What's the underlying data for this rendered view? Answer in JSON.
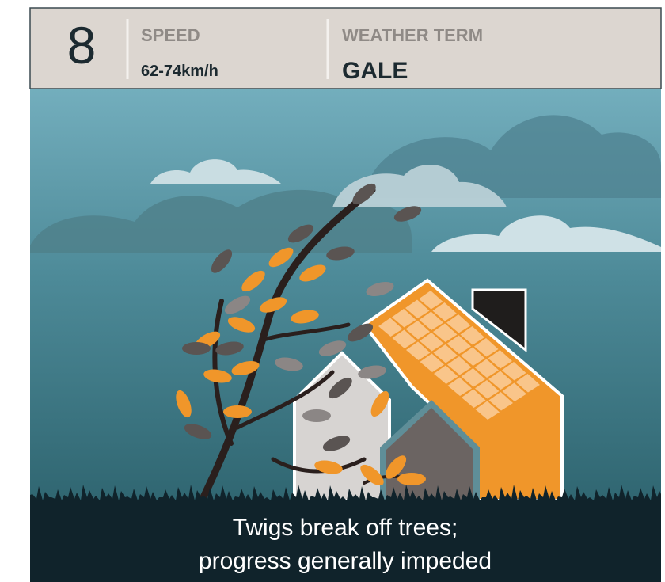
{
  "beaufort_number": "8",
  "speed": {
    "label": "SPEED",
    "value": "62-74km/h"
  },
  "weather_term": {
    "label": "WEATHER TERM",
    "value": "GALE"
  },
  "description": [
    "Twigs break off trees;",
    "progress generally impeded"
  ]
}
